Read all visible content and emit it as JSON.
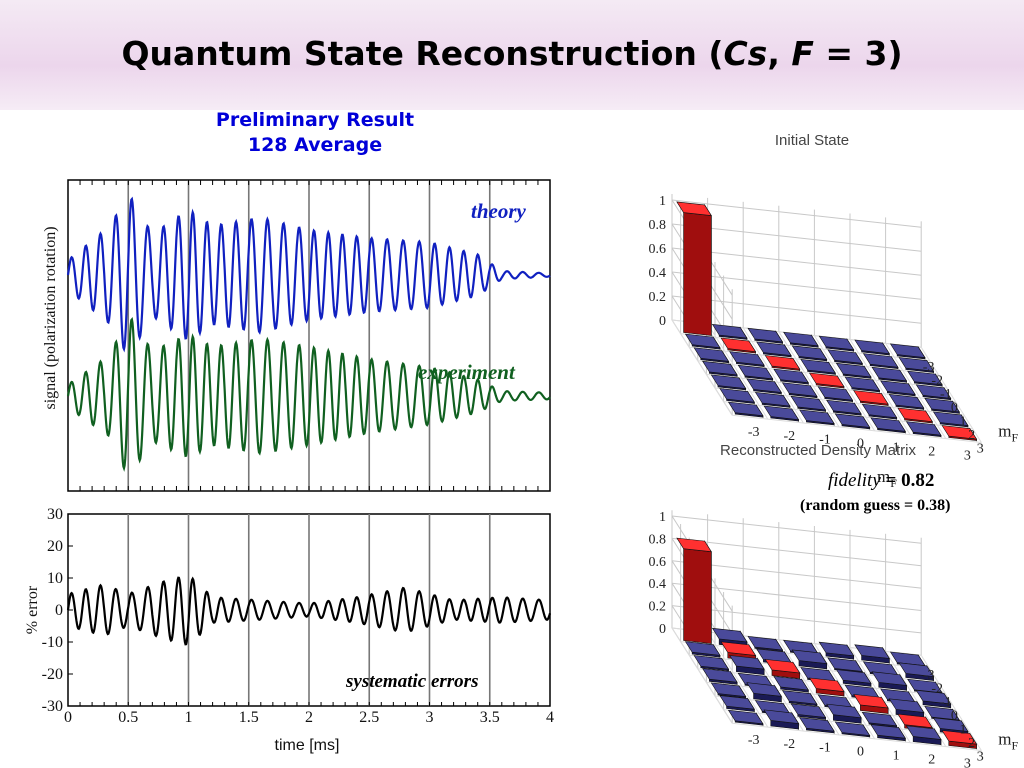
{
  "slide": {
    "title_main": "Quantum State Reconstruction (",
    "title_cs": "Cs",
    "title_sep": ", ",
    "title_F": "F",
    "title_end": " = 3)",
    "preliminary_line1": "Preliminary Result",
    "preliminary_line2": "128 Average",
    "label_theory": "theory",
    "label_experiment": "experiment",
    "label_systematic": "systematic errors",
    "fidelity_word": "fidelity",
    "fidelity_value": " = 0.82",
    "random_guess": "(random guess = 0.38)",
    "colors": {
      "title_band": "#ecd6ec",
      "blue": "#0000d8",
      "theory": "#1020c0",
      "experiment": "#106020",
      "error": "#000000",
      "bar_red": "#e01818",
      "bar_navy": "#2a2a78"
    }
  },
  "chart_data": [
    {
      "type": "line",
      "ylabel": "signal (polarization rotation)",
      "xlim": [
        0,
        4
      ],
      "series": [
        {
          "name": "theory",
          "oscillation_frequency_cycles_per_ms": 8,
          "offset": 0.8,
          "amplitude_envelope": [
            [
              0,
              0.18
            ],
            [
              0.35,
              0.6
            ],
            [
              0.5,
              1.0
            ],
            [
              0.7,
              0.5
            ],
            [
              1.0,
              0.8
            ],
            [
              1.2,
              0.6
            ],
            [
              1.6,
              0.7
            ],
            [
              2.0,
              0.55
            ],
            [
              2.5,
              0.45
            ],
            [
              3.0,
              0.4
            ],
            [
              3.4,
              0.25
            ],
            [
              3.6,
              0.05
            ],
            [
              4.0,
              0.02
            ]
          ]
        },
        {
          "name": "experiment",
          "oscillation_frequency_cycles_per_ms": 8,
          "offset": -0.6,
          "amplitude_envelope": [
            [
              0,
              0.14
            ],
            [
              0.35,
              0.5
            ],
            [
              0.5,
              1.0
            ],
            [
              0.7,
              0.55
            ],
            [
              1.0,
              0.75
            ],
            [
              1.2,
              0.6
            ],
            [
              1.6,
              0.7
            ],
            [
              2.0,
              0.6
            ],
            [
              2.5,
              0.45
            ],
            [
              3.0,
              0.35
            ],
            [
              3.4,
              0.2
            ],
            [
              3.6,
              0.06
            ],
            [
              4.0,
              0.04
            ]
          ]
        }
      ]
    },
    {
      "type": "line",
      "xlabel": "time [ms]",
      "ylabel": "% error",
      "xlim": [
        0,
        4
      ],
      "ylim": [
        -30,
        30
      ],
      "xticks": [
        "0",
        "0.5",
        "1",
        "1.5",
        "2",
        "2.5",
        "3",
        "3.5",
        "4"
      ],
      "yticks": [
        "30",
        "20",
        "10",
        "0",
        "-10",
        "-20",
        "-30"
      ],
      "series": [
        {
          "name": "systematic errors",
          "oscillation_frequency_cycles_per_ms": 8,
          "amplitude_envelope": [
            [
              0,
              5
            ],
            [
              0.3,
              8
            ],
            [
              0.5,
              5
            ],
            [
              0.8,
              9
            ],
            [
              1.0,
              11
            ],
            [
              1.2,
              4
            ],
            [
              1.6,
              3
            ],
            [
              2.0,
              2
            ],
            [
              2.4,
              4
            ],
            [
              2.8,
              7
            ],
            [
              3.2,
              3
            ],
            [
              3.6,
              4
            ],
            [
              4.0,
              3
            ]
          ]
        }
      ]
    },
    {
      "type": "bar3d",
      "title": "Initial State",
      "zticks": [
        "1",
        "0.8",
        "0.6",
        "0.4",
        "0.2",
        "0"
      ],
      "mF": [
        "-3",
        "-2",
        "-1",
        "0",
        "1",
        "2",
        "3"
      ],
      "axis_label": "mF",
      "diagonal": [
        1.0,
        0,
        0,
        0,
        0,
        0,
        0
      ],
      "diagonal_highlight": [
        true,
        true,
        true,
        true,
        true,
        true,
        true
      ],
      "offdiagonal_note": "near zero"
    },
    {
      "type": "bar3d",
      "title": "Reconstructed Density Matrix",
      "zticks": [
        "1",
        "0.8",
        "0.6",
        "0.4",
        "0.2",
        "0"
      ],
      "mF": [
        "-3",
        "-2",
        "-1",
        "0",
        "1",
        "2",
        "3"
      ],
      "axis_label": "mF",
      "diagonal": [
        0.82,
        0.05,
        0.05,
        0.04,
        0.05,
        0.03,
        0.04
      ],
      "offdiagonal_note": "small, up to about 0.05"
    }
  ]
}
